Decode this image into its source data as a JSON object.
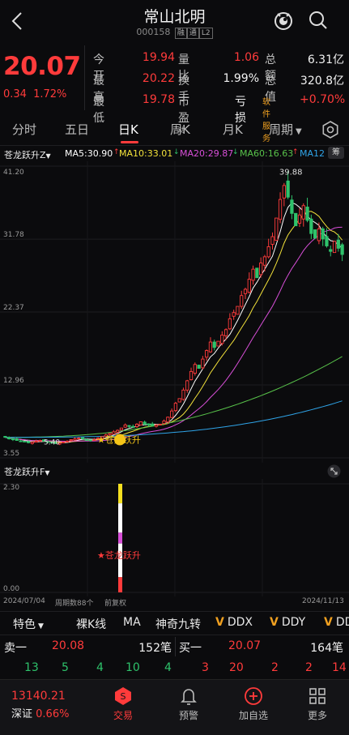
{
  "header": {
    "title": "常山北明",
    "code": "000158",
    "tags": [
      "融",
      "通",
      "L2"
    ]
  },
  "quote": {
    "price": "20.07",
    "change": "0.34",
    "change_pct": "1.72%",
    "rows": [
      {
        "l1": "今开",
        "v1": "19.94",
        "l2": "量比",
        "v2": "1.06",
        "l3": "总额",
        "v3": "6.31亿"
      },
      {
        "l1": "最高",
        "v1": "20.22",
        "l2": "换手",
        "v2": "1.99%",
        "l3": "总值",
        "v3": "320.8亿"
      },
      {
        "l1": "最低",
        "v1": "19.78",
        "l2": "市盈",
        "v2": "",
        "l3": "亏损",
        "v3": "+0.70%"
      }
    ],
    "pe_sup": "动",
    "software_service": "软件服务"
  },
  "tabs": [
    "分时",
    "五日",
    "日K",
    "周K",
    "月K",
    "周期"
  ],
  "indicators": {
    "main_name": "苍龙跃升Z",
    "ma5": "MA5:30.90",
    "ma10": "MA10:33.01",
    "ma20": "MA20:29.87",
    "ma60": "MA60:16.63",
    "ma120": "MA12",
    "sub_name": "苍龙跃升F",
    "colors": {
      "ma5": "#ffffff",
      "ma10": "#f3e23a",
      "ma20": "#d84fd8",
      "ma60": "#58c24a",
      "ma120": "#2fa4e8",
      "up": "#ff3b3b",
      "down": "#2ec26b"
    }
  },
  "chart_data": [
    {
      "type": "candlestick",
      "title": "",
      "y_ticks": [
        "41.20",
        "31.78",
        "22.37",
        "12.96",
        "3.55"
      ],
      "ylim": [
        3.55,
        41.2
      ],
      "max_label": "39.88",
      "low_label": "5.40",
      "signal_label": "★苍龙跃升",
      "close_values": [
        6.2,
        6.0,
        5.9,
        5.8,
        5.7,
        5.6,
        5.5,
        5.6,
        5.7,
        5.8,
        5.7,
        5.6,
        5.5,
        5.4,
        5.5,
        5.6,
        5.7,
        5.9,
        6.0,
        6.1,
        6.0,
        5.9,
        5.8,
        5.9,
        6.1,
        6.3,
        6.5,
        6.7,
        6.9,
        7.1,
        7.4,
        7.8,
        7.6,
        7.5,
        7.9,
        8.2,
        7.9,
        7.8,
        7.7,
        7.8,
        7.9,
        8.3,
        8.8,
        9.6,
        10.6,
        11.2,
        12.3,
        13.5,
        14.7,
        15.6,
        15.1,
        16.3,
        17.4,
        18.5,
        17.8,
        18.6,
        19.4,
        20.1,
        21.5,
        22.3,
        23.1,
        24.5,
        25.3,
        26.6,
        27.9,
        26.8,
        28.7,
        29.5,
        30.8,
        32.1,
        34.5,
        36.9,
        38.7,
        37.2,
        35.1,
        33.5,
        34.9,
        36.1,
        34.2,
        32.5,
        31.9,
        33.1,
        31.8,
        30.9,
        30.2,
        31.5,
        30.6,
        29.8
      ],
      "ma_series": [
        {
          "name": "MA5",
          "last": 30.9
        },
        {
          "name": "MA10",
          "last": 33.01
        },
        {
          "name": "MA20",
          "last": 29.87
        },
        {
          "name": "MA60",
          "last": 16.63
        },
        {
          "name": "MA120",
          "last": 10.9
        }
      ]
    },
    {
      "type": "bar",
      "title": "",
      "y_ticks": [
        "2.30",
        "0.00"
      ],
      "ylim": [
        0,
        2.3
      ],
      "signal_label": "★苍龙跃升",
      "values": [
        2.3
      ]
    }
  ],
  "dates": {
    "start": "2024/07/04",
    "period": "周期数88个",
    "adj": "前复权",
    "end": "2024/11/13"
  },
  "toolbar": [
    "特色",
    "裸K线",
    "MA",
    "神奇九转",
    "DDX",
    "DDY",
    "DD"
  ],
  "orders": {
    "sell_label": "卖一",
    "sell_price": "20.08",
    "sell_qty": "152笔",
    "buy_label": "买一",
    "buy_price": "20.07",
    "buy_qty": "164笔",
    "sell_vols": [
      "13",
      "5",
      "4",
      "10",
      "4"
    ],
    "buy_vols": [
      "3",
      "20",
      "2",
      "2",
      "14"
    ]
  },
  "index": {
    "value": "13140.21",
    "name": "深证",
    "pct": "0.66%"
  },
  "nav": [
    "交易",
    "预警",
    "加自选",
    "更多"
  ]
}
